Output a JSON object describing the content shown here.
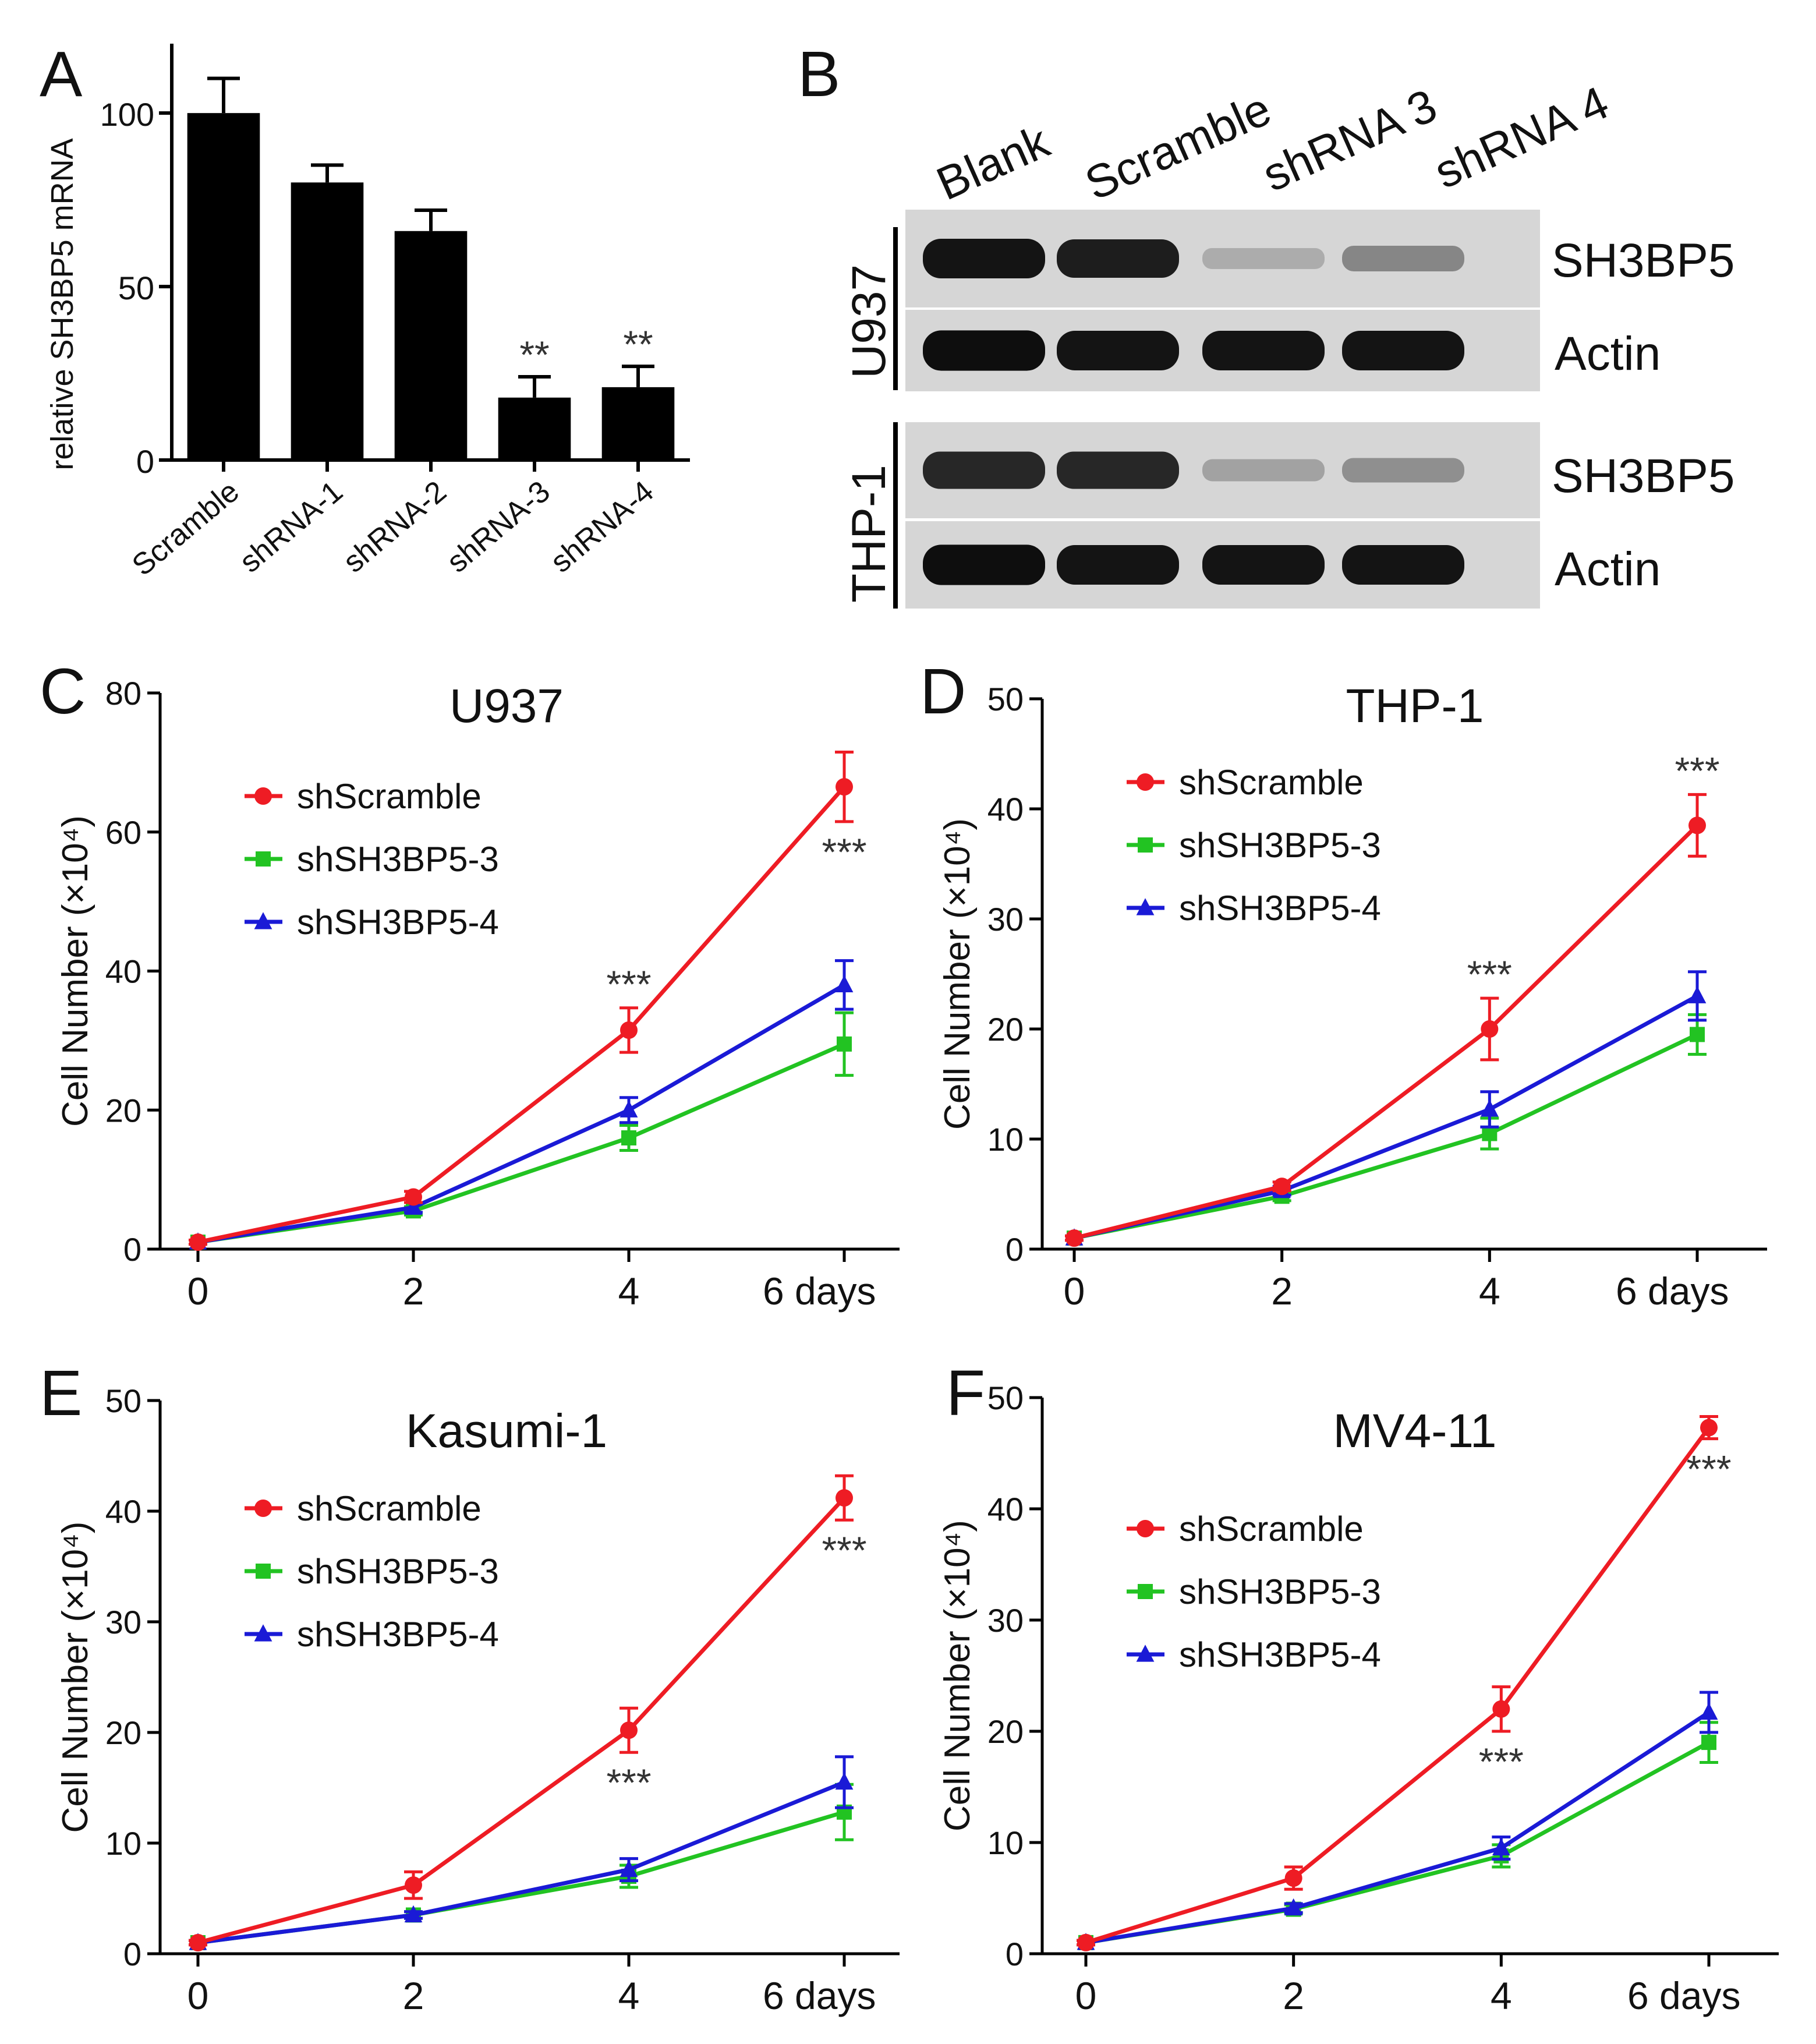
{
  "panel_letters": [
    "A",
    "B",
    "C",
    "D",
    "E",
    "F"
  ],
  "legend": {
    "items": [
      {
        "name": "shScramble",
        "color": "#ee1c24",
        "marker": "circle"
      },
      {
        "name": "shSH3BP5-3",
        "color": "#22c322",
        "marker": "square"
      },
      {
        "name": "shSH3BP5-4",
        "color": "#1a1ad6",
        "marker": "triangle"
      }
    ]
  },
  "western_blot": {
    "lanes": [
      "Blank",
      "Scramble",
      "shRNA 3",
      "shRNA 4"
    ],
    "cell_lines": [
      {
        "name": "U937",
        "bands": [
          {
            "protein": "SH3BP5",
            "intensity": [
              0.95,
              0.9,
              0.15,
              0.35
            ]
          },
          {
            "protein": "Actin",
            "intensity": [
              0.98,
              0.95,
              0.95,
              0.95
            ]
          }
        ]
      },
      {
        "name": "THP-1",
        "bands": [
          {
            "protein": "SH3BP5",
            "intensity": [
              0.85,
              0.85,
              0.2,
              0.3
            ]
          },
          {
            "protein": "Actin",
            "intensity": [
              0.98,
              0.95,
              0.95,
              0.95
            ]
          }
        ]
      }
    ]
  },
  "chart_data": [
    {
      "id": "A",
      "type": "bar",
      "title": "",
      "xlabel": "",
      "ylabel": "relative SH3BP5 mRNA",
      "categories": [
        "Scramble",
        "shRNA-1",
        "shRNA-2",
        "shRNA-3",
        "shRNA-4"
      ],
      "values": [
        100,
        80,
        66,
        18,
        21
      ],
      "errors": [
        10,
        5,
        6,
        6,
        6
      ],
      "annotations": [
        "",
        "",
        "",
        "**",
        "**"
      ],
      "ylim": [
        0,
        120
      ],
      "yticks": [
        0,
        50,
        100
      ],
      "bar_color": "#000000"
    },
    {
      "id": "C",
      "type": "line",
      "title": "U937",
      "xlabel": "",
      "ylabel": "Cell Number (×10⁴)",
      "x": [
        0,
        2,
        4,
        6
      ],
      "xtick_labels": [
        "0",
        "2",
        "4",
        "6 days"
      ],
      "ylim": [
        0,
        80
      ],
      "yticks": [
        0,
        20,
        40,
        60,
        80
      ],
      "series": [
        {
          "name": "shScramble",
          "values": [
            1,
            7.5,
            31.5,
            66.5
          ],
          "errors": [
            0.3,
            0.8,
            3.2,
            5
          ]
        },
        {
          "name": "shSH3BP5-3",
          "values": [
            1,
            5.5,
            16,
            29.5
          ],
          "errors": [
            0.3,
            0.6,
            1.8,
            4.5
          ]
        },
        {
          "name": "shSH3BP5-4",
          "values": [
            1,
            6,
            20,
            38
          ],
          "errors": [
            0.3,
            0.7,
            1.8,
            3.5
          ]
        }
      ],
      "annotations": [
        {
          "x": 4,
          "text": "***",
          "pos": "above"
        },
        {
          "x": 6,
          "text": "***",
          "pos": "below"
        }
      ]
    },
    {
      "id": "D",
      "type": "line",
      "title": "THP-1",
      "xlabel": "",
      "ylabel": "Cell Number (×10⁴)",
      "x": [
        0,
        2,
        4,
        6
      ],
      "xtick_labels": [
        "0",
        "2",
        "4",
        "6 days"
      ],
      "ylim": [
        0,
        50
      ],
      "yticks": [
        0,
        10,
        20,
        30,
        40,
        50
      ],
      "series": [
        {
          "name": "shScramble",
          "values": [
            1,
            5.7,
            20,
            38.5
          ],
          "errors": [
            0.2,
            0.4,
            2.8,
            2.8
          ]
        },
        {
          "name": "shSH3BP5-3",
          "values": [
            1,
            4.8,
            10.5,
            19.5
          ],
          "errors": [
            0.2,
            0.4,
            1.4,
            1.8
          ]
        },
        {
          "name": "shSH3BP5-4",
          "values": [
            1,
            5.3,
            12.7,
            23
          ],
          "errors": [
            0.2,
            0.4,
            1.6,
            2.2
          ]
        }
      ],
      "annotations": [
        {
          "x": 4,
          "text": "***",
          "pos": "above"
        },
        {
          "x": 6,
          "text": "***",
          "pos": "above"
        }
      ]
    },
    {
      "id": "E",
      "type": "line",
      "title": "Kasumi-1",
      "xlabel": "",
      "ylabel": "Cell Number (×10⁴)",
      "x": [
        0,
        2,
        4,
        6
      ],
      "xtick_labels": [
        "0",
        "2",
        "4",
        "6 days"
      ],
      "ylim": [
        0,
        50
      ],
      "yticks": [
        0,
        10,
        20,
        30,
        40,
        50
      ],
      "series": [
        {
          "name": "shScramble",
          "values": [
            1,
            6.2,
            20.2,
            41.2
          ],
          "errors": [
            0.2,
            1.2,
            2,
            2
          ]
        },
        {
          "name": "shSH3BP5-3",
          "values": [
            1,
            3.5,
            7,
            12.8
          ],
          "errors": [
            0.2,
            0.3,
            1,
            2.5
          ]
        },
        {
          "name": "shSH3BP5-4",
          "values": [
            1,
            3.5,
            7.6,
            15.5
          ],
          "errors": [
            0.2,
            0.3,
            1,
            2.3
          ]
        }
      ],
      "annotations": [
        {
          "x": 4,
          "text": "***",
          "pos": "below"
        },
        {
          "x": 6,
          "text": "***",
          "pos": "below"
        }
      ]
    },
    {
      "id": "F",
      "type": "line",
      "title": "MV4-11",
      "xlabel": "",
      "ylabel": "Cell Number (×10⁴)",
      "x": [
        0,
        2,
        4,
        6
      ],
      "xtick_labels": [
        "0",
        "2",
        "4",
        "6 days"
      ],
      "ylim": [
        0,
        50
      ],
      "yticks": [
        0,
        10,
        20,
        30,
        40,
        50
      ],
      "series": [
        {
          "name": "shScramble",
          "values": [
            1,
            6.8,
            22,
            47.3
          ],
          "errors": [
            0.2,
            1,
            2,
            1
          ]
        },
        {
          "name": "shSH3BP5-3",
          "values": [
            1,
            4,
            8.8,
            19
          ],
          "errors": [
            0.2,
            0.4,
            1,
            1.8
          ]
        },
        {
          "name": "shSH3BP5-4",
          "values": [
            1,
            4.1,
            9.5,
            21.7
          ],
          "errors": [
            0.2,
            0.4,
            1,
            1.8
          ]
        }
      ],
      "annotations": [
        {
          "x": 4,
          "text": "***",
          "pos": "below"
        },
        {
          "x": 6,
          "text": "***",
          "pos": "below"
        }
      ]
    }
  ]
}
